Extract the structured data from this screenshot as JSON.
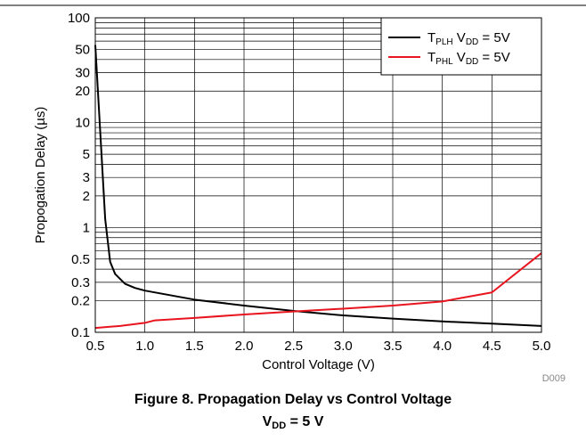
{
  "chart_data": {
    "type": "line",
    "title": "Figure 8. Propagation Delay vs Control Voltage",
    "subtitle": {
      "prefix": "V",
      "sub": "DD",
      "suffix": " = 5 V"
    },
    "xlabel": "Control Voltage (V)",
    "ylabel": "Propogation Delay (µs)",
    "xlim": [
      0.5,
      5.0
    ],
    "ylim": [
      0.1,
      100
    ],
    "yscale": "log",
    "grid": true,
    "legend_position": "top-right",
    "x_ticks": [
      "0.5",
      "1.0",
      "1.5",
      "2.0",
      "2.5",
      "3.0",
      "3.5",
      "4.0",
      "4.5",
      "5.0"
    ],
    "y_ticks": [
      {
        "value": 0.1,
        "label": "0.1"
      },
      {
        "value": 0.2,
        "label": "0.2"
      },
      {
        "value": 0.3,
        "label": "0.3"
      },
      {
        "value": 0.5,
        "label": "0.5"
      },
      {
        "value": 1,
        "label": "1"
      },
      {
        "value": 2,
        "label": "2"
      },
      {
        "value": 3,
        "label": "3"
      },
      {
        "value": 5,
        "label": "5"
      },
      {
        "value": 10,
        "label": "10"
      },
      {
        "value": 20,
        "label": "20"
      },
      {
        "value": 30,
        "label": "30"
      },
      {
        "value": 50,
        "label": "50"
      },
      {
        "value": 100,
        "label": "100"
      }
    ],
    "series": [
      {
        "name": {
          "main": "T",
          "sub": "PLH",
          "mid": " V",
          "sub2": "DD",
          "tail": " = 5V"
        },
        "color": "#000000",
        "points": [
          [
            0.5,
            55
          ],
          [
            0.6,
            1.2
          ],
          [
            0.65,
            0.47
          ],
          [
            0.7,
            0.36
          ],
          [
            0.8,
            0.29
          ],
          [
            0.9,
            0.265
          ],
          [
            1.0,
            0.25
          ],
          [
            1.5,
            0.205
          ],
          [
            2.0,
            0.18
          ],
          [
            2.5,
            0.16
          ],
          [
            3.0,
            0.145
          ],
          [
            3.5,
            0.135
          ],
          [
            4.0,
            0.127
          ],
          [
            4.5,
            0.121
          ],
          [
            5.0,
            0.115
          ]
        ]
      },
      {
        "name": {
          "main": "T",
          "sub": "PHL",
          "mid": " V",
          "sub2": "DD",
          "tail": " = 5V"
        },
        "color": "#e8141e",
        "points": [
          [
            0.5,
            0.11
          ],
          [
            0.75,
            0.115
          ],
          [
            1.0,
            0.123
          ],
          [
            1.1,
            0.13
          ],
          [
            1.5,
            0.137
          ],
          [
            2.0,
            0.148
          ],
          [
            2.5,
            0.158
          ],
          [
            3.0,
            0.168
          ],
          [
            3.5,
            0.18
          ],
          [
            4.0,
            0.197
          ],
          [
            4.5,
            0.24
          ],
          [
            5.0,
            0.57
          ]
        ]
      }
    ],
    "code": "D009"
  }
}
